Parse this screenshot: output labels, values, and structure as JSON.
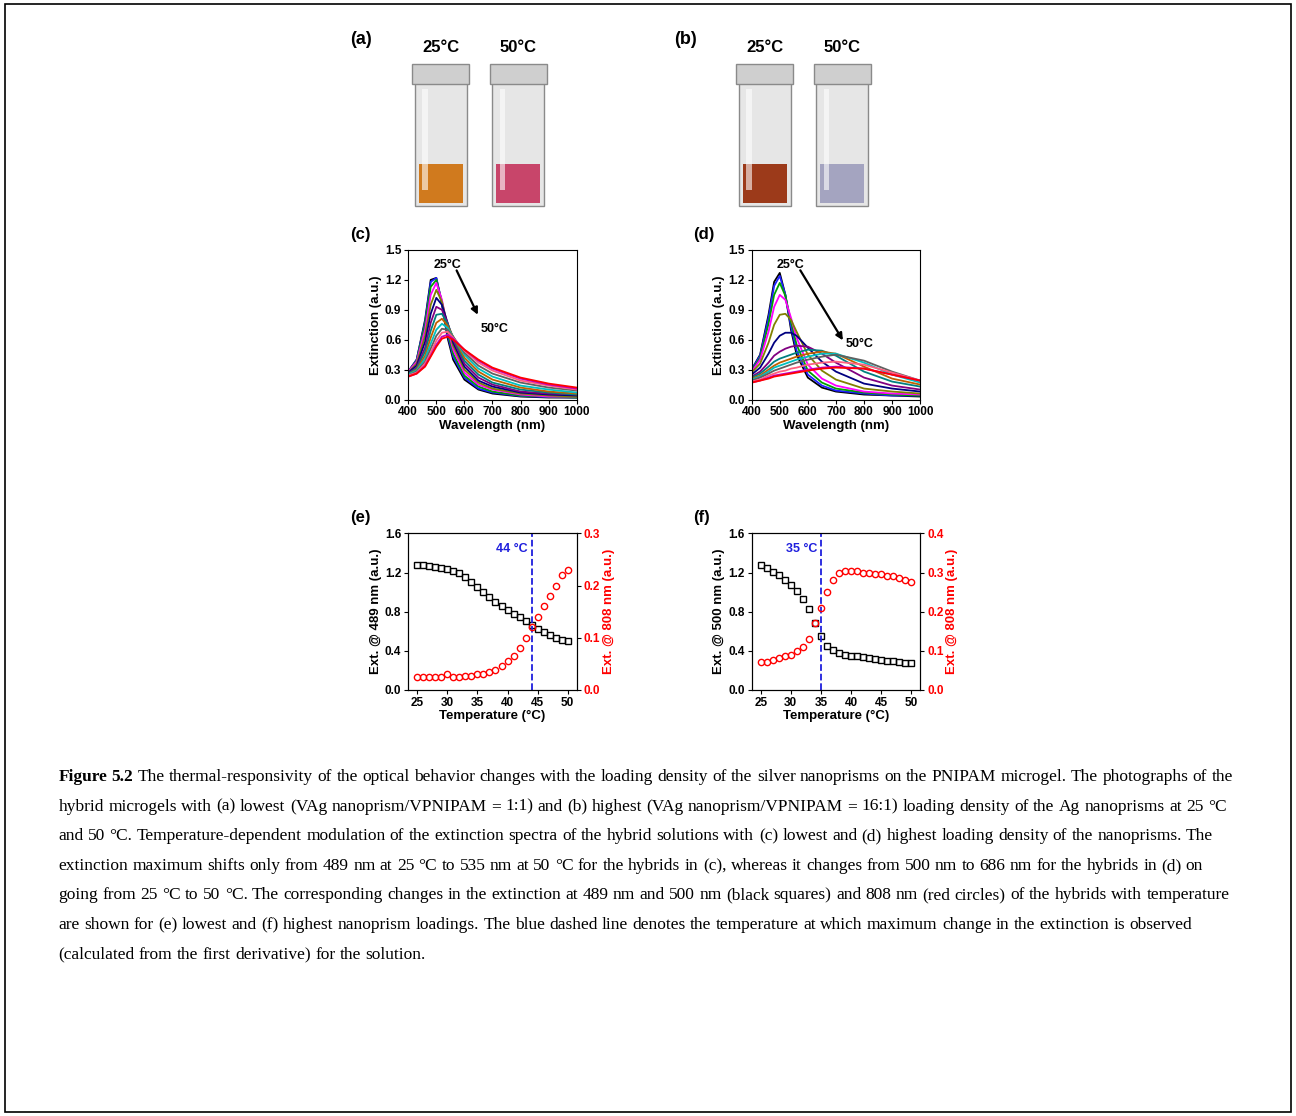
{
  "photos": [
    {
      "title": "(a)",
      "labels": [
        "25°C",
        "50°C"
      ],
      "colors": [
        "#d07a1e",
        "#c8456a"
      ]
    },
    {
      "title": "(b)",
      "labels": [
        "25°C",
        "50°C"
      ],
      "colors": [
        "#9c3a1a",
        "#a4a4c0"
      ]
    }
  ],
  "chart_data": [
    {
      "type": "line",
      "title": "(c)",
      "x_label": "Wavelength (nm)",
      "y_label": "Extinction (a.u.)",
      "xlim": [
        400,
        1000
      ],
      "xticks": [
        400,
        500,
        600,
        700,
        800,
        900,
        1000
      ],
      "ylim": [
        0.0,
        1.5
      ],
      "yticks": [
        0.0,
        0.3,
        0.6,
        0.9,
        1.2,
        1.5
      ],
      "annotations": [
        "25°C",
        "50°C"
      ],
      "x": [
        400,
        430,
        460,
        480,
        500,
        520,
        540,
        560,
        600,
        650,
        700,
        800,
        900,
        1000
      ],
      "series": [
        {
          "color": "#000000",
          "values": [
            0.28,
            0.4,
            0.8,
            1.2,
            1.22,
            0.95,
            0.62,
            0.4,
            0.2,
            0.1,
            0.06,
            0.03,
            0.02,
            0.02
          ]
        },
        {
          "color": "#1f1fff",
          "values": [
            0.28,
            0.4,
            0.78,
            1.18,
            1.22,
            0.97,
            0.65,
            0.43,
            0.22,
            0.11,
            0.07,
            0.035,
            0.025,
            0.02
          ]
        },
        {
          "color": "#00a000",
          "values": [
            0.28,
            0.39,
            0.75,
            1.13,
            1.2,
            0.98,
            0.68,
            0.46,
            0.24,
            0.13,
            0.08,
            0.04,
            0.03,
            0.02
          ]
        },
        {
          "color": "#ff00ff",
          "values": [
            0.28,
            0.38,
            0.7,
            1.05,
            1.17,
            1.0,
            0.72,
            0.5,
            0.27,
            0.15,
            0.1,
            0.05,
            0.03,
            0.03
          ]
        },
        {
          "color": "#808000",
          "values": [
            0.27,
            0.36,
            0.64,
            0.95,
            1.1,
            0.98,
            0.75,
            0.54,
            0.3,
            0.17,
            0.11,
            0.06,
            0.04,
            0.03
          ]
        },
        {
          "color": "#000080",
          "values": [
            0.27,
            0.34,
            0.58,
            0.86,
            1.02,
            0.95,
            0.77,
            0.57,
            0.33,
            0.19,
            0.13,
            0.07,
            0.05,
            0.04
          ]
        },
        {
          "color": "#800080",
          "values": [
            0.26,
            0.32,
            0.52,
            0.77,
            0.93,
            0.9,
            0.77,
            0.6,
            0.36,
            0.22,
            0.15,
            0.08,
            0.06,
            0.05
          ]
        },
        {
          "color": "#008080",
          "values": [
            0.26,
            0.31,
            0.48,
            0.69,
            0.85,
            0.86,
            0.76,
            0.62,
            0.39,
            0.25,
            0.17,
            0.1,
            0.07,
            0.05
          ]
        },
        {
          "color": "#c06000",
          "values": [
            0.25,
            0.3,
            0.44,
            0.62,
            0.77,
            0.81,
            0.74,
            0.63,
            0.42,
            0.28,
            0.2,
            0.12,
            0.08,
            0.06
          ]
        },
        {
          "color": "#00c0c0",
          "values": [
            0.25,
            0.29,
            0.41,
            0.56,
            0.7,
            0.76,
            0.72,
            0.63,
            0.45,
            0.31,
            0.23,
            0.14,
            0.1,
            0.07
          ]
        },
        {
          "color": "#606060",
          "values": [
            0.24,
            0.28,
            0.38,
            0.51,
            0.64,
            0.71,
            0.7,
            0.63,
            0.47,
            0.34,
            0.26,
            0.17,
            0.12,
            0.09
          ]
        },
        {
          "color": "#ff6080",
          "values": [
            0.24,
            0.27,
            0.36,
            0.47,
            0.59,
            0.67,
            0.68,
            0.62,
            0.49,
            0.37,
            0.29,
            0.19,
            0.14,
            0.1
          ]
        },
        {
          "color": "#c000c0",
          "values": [
            0.23,
            0.26,
            0.34,
            0.44,
            0.55,
            0.63,
            0.65,
            0.61,
            0.5,
            0.39,
            0.31,
            0.21,
            0.15,
            0.11
          ]
        },
        {
          "color": "#ff0000",
          "values": [
            0.23,
            0.26,
            0.33,
            0.43,
            0.53,
            0.61,
            0.63,
            0.6,
            0.5,
            0.4,
            0.32,
            0.22,
            0.16,
            0.12
          ]
        }
      ]
    },
    {
      "type": "line",
      "title": "(d)",
      "x_label": "Wavelength (nm)",
      "y_label": "Extinction (a.u.)",
      "xlim": [
        400,
        1000
      ],
      "xticks": [
        400,
        500,
        600,
        700,
        800,
        900,
        1000
      ],
      "ylim": [
        0.0,
        1.5
      ],
      "yticks": [
        0.0,
        0.3,
        0.6,
        0.9,
        1.2,
        1.5
      ],
      "annotations": [
        "25°C",
        "50°C"
      ],
      "x": [
        400,
        430,
        460,
        480,
        500,
        520,
        540,
        560,
        600,
        650,
        700,
        800,
        900,
        1000
      ],
      "series": [
        {
          "color": "#000000",
          "values": [
            0.3,
            0.45,
            0.85,
            1.18,
            1.27,
            1.05,
            0.7,
            0.45,
            0.22,
            0.12,
            0.08,
            0.05,
            0.04,
            0.03
          ]
        },
        {
          "color": "#1f1fff",
          "values": [
            0.3,
            0.44,
            0.82,
            1.14,
            1.24,
            1.05,
            0.73,
            0.49,
            0.25,
            0.14,
            0.09,
            0.06,
            0.04,
            0.04
          ]
        },
        {
          "color": "#00a000",
          "values": [
            0.29,
            0.42,
            0.76,
            1.05,
            1.17,
            1.04,
            0.78,
            0.55,
            0.29,
            0.17,
            0.11,
            0.07,
            0.05,
            0.04
          ]
        },
        {
          "color": "#ff00ff",
          "values": [
            0.28,
            0.4,
            0.68,
            0.93,
            1.05,
            1.0,
            0.82,
            0.62,
            0.35,
            0.21,
            0.14,
            0.08,
            0.06,
            0.05
          ]
        },
        {
          "color": "#808000",
          "values": [
            0.27,
            0.36,
            0.57,
            0.75,
            0.85,
            0.86,
            0.8,
            0.68,
            0.45,
            0.29,
            0.2,
            0.11,
            0.08,
            0.06
          ]
        },
        {
          "color": "#000080",
          "values": [
            0.25,
            0.32,
            0.46,
            0.57,
            0.64,
            0.67,
            0.67,
            0.64,
            0.52,
            0.38,
            0.28,
            0.16,
            0.11,
            0.08
          ]
        },
        {
          "color": "#800080",
          "values": [
            0.23,
            0.28,
            0.37,
            0.44,
            0.48,
            0.51,
            0.53,
            0.54,
            0.53,
            0.46,
            0.37,
            0.22,
            0.14,
            0.1
          ]
        },
        {
          "color": "#008080",
          "values": [
            0.22,
            0.26,
            0.33,
            0.38,
            0.41,
            0.43,
            0.45,
            0.47,
            0.5,
            0.49,
            0.44,
            0.28,
            0.18,
            0.13
          ]
        },
        {
          "color": "#c06000",
          "values": [
            0.21,
            0.24,
            0.3,
            0.34,
            0.37,
            0.39,
            0.41,
            0.43,
            0.46,
            0.48,
            0.46,
            0.33,
            0.21,
            0.15
          ]
        },
        {
          "color": "#00c0c0",
          "values": [
            0.2,
            0.23,
            0.28,
            0.32,
            0.34,
            0.36,
            0.38,
            0.4,
            0.43,
            0.46,
            0.46,
            0.37,
            0.25,
            0.17
          ]
        },
        {
          "color": "#606060",
          "values": [
            0.19,
            0.22,
            0.26,
            0.29,
            0.31,
            0.33,
            0.35,
            0.37,
            0.4,
            0.43,
            0.45,
            0.39,
            0.28,
            0.19
          ]
        },
        {
          "color": "#ff6080",
          "values": [
            0.18,
            0.2,
            0.24,
            0.26,
            0.28,
            0.29,
            0.31,
            0.32,
            0.35,
            0.37,
            0.38,
            0.35,
            0.27,
            0.19
          ]
        },
        {
          "color": "#c000c0",
          "values": [
            0.17,
            0.19,
            0.22,
            0.24,
            0.25,
            0.26,
            0.27,
            0.28,
            0.3,
            0.32,
            0.33,
            0.31,
            0.25,
            0.19
          ]
        },
        {
          "color": "#ff0000",
          "values": [
            0.17,
            0.19,
            0.21,
            0.23,
            0.24,
            0.25,
            0.26,
            0.27,
            0.29,
            0.31,
            0.32,
            0.31,
            0.25,
            0.19
          ]
        }
      ]
    },
    {
      "type": "scatter",
      "title": "(e)",
      "x_label": "Temperature (°C)",
      "y_label": "Ext. @ 489 nm (a.u.)",
      "y2_label": "Ext. @ 808 nm (a.u.)",
      "xlim": [
        23.5,
        51.5
      ],
      "xticks": [
        25,
        30,
        35,
        40,
        45,
        50
      ],
      "ylim": [
        0.0,
        1.6
      ],
      "yticks": [
        0.0,
        0.4,
        0.8,
        1.2,
        1.6
      ],
      "y2lim": [
        0.0,
        0.3
      ],
      "y2ticks": [
        0.0,
        0.1,
        0.2,
        0.3
      ],
      "annotations": [
        {
          "text": "44 °C",
          "x": 44
        }
      ],
      "x": [
        25,
        26,
        27,
        28,
        29,
        30,
        31,
        32,
        33,
        34,
        35,
        36,
        37,
        38,
        39,
        40,
        41,
        42,
        43,
        44,
        45,
        46,
        47,
        48,
        49,
        50
      ],
      "series": [
        {
          "color": "#000000",
          "marker": "square",
          "values": [
            1.28,
            1.28,
            1.27,
            1.26,
            1.25,
            1.24,
            1.22,
            1.19,
            1.15,
            1.1,
            1.05,
            1.0,
            0.95,
            0.9,
            0.86,
            0.82,
            0.78,
            0.74,
            0.7,
            0.66,
            0.62,
            0.59,
            0.56,
            0.53,
            0.51,
            0.5
          ]
        },
        {
          "color": "#ff0000",
          "marker": "circle",
          "axis": "y2",
          "values": [
            0.025,
            0.025,
            0.025,
            0.024,
            0.025,
            0.03,
            0.025,
            0.025,
            0.026,
            0.026,
            0.03,
            0.03,
            0.034,
            0.038,
            0.045,
            0.055,
            0.065,
            0.08,
            0.1,
            0.12,
            0.14,
            0.16,
            0.18,
            0.2,
            0.22,
            0.23
          ]
        }
      ]
    },
    {
      "type": "scatter",
      "title": "(f)",
      "x_label": "Temperature (°C)",
      "y_label": "Ext. @ 500 nm (a.u.)",
      "y2_label": "Ext. @ 808 nm (a.u.)",
      "xlim": [
        23.5,
        51.5
      ],
      "xticks": [
        25,
        30,
        35,
        40,
        45,
        50
      ],
      "ylim": [
        0.0,
        1.6
      ],
      "yticks": [
        0.0,
        0.4,
        0.8,
        1.2,
        1.6
      ],
      "y2lim": [
        0.0,
        0.4
      ],
      "y2ticks": [
        0.0,
        0.1,
        0.2,
        0.3,
        0.4
      ],
      "annotations": [
        {
          "text": "35 °C",
          "x": 35
        }
      ],
      "x": [
        25,
        26,
        27,
        28,
        29,
        30,
        31,
        32,
        33,
        34,
        35,
        36,
        37,
        38,
        39,
        40,
        41,
        42,
        43,
        44,
        45,
        46,
        47,
        48,
        49,
        50
      ],
      "series": [
        {
          "color": "#000000",
          "marker": "square",
          "values": [
            1.28,
            1.25,
            1.21,
            1.17,
            1.12,
            1.07,
            1.01,
            0.93,
            0.83,
            0.68,
            0.55,
            0.45,
            0.41,
            0.38,
            0.36,
            0.35,
            0.34,
            0.33,
            0.32,
            0.31,
            0.3,
            0.29,
            0.29,
            0.28,
            0.27,
            0.27
          ]
        },
        {
          "color": "#ff0000",
          "marker": "circle",
          "axis": "y2",
          "values": [
            0.07,
            0.072,
            0.075,
            0.08,
            0.085,
            0.09,
            0.1,
            0.11,
            0.13,
            0.17,
            0.21,
            0.25,
            0.28,
            0.3,
            0.305,
            0.305,
            0.305,
            0.3,
            0.3,
            0.295,
            0.295,
            0.29,
            0.29,
            0.285,
            0.28,
            0.275
          ]
        }
      ]
    }
  ],
  "caption": {
    "label": "Figure 5.2",
    "text": "The thermal-responsivity of the optical behavior changes with the loading density of the silver nanoprisms on the PNIPAM microgel. The photographs of the hybrid microgels with (a) lowest (VAg nanoprism/VPNIPAM = 1:1) and (b) highest (VAg nanoprism/VPNIPAM = 16:1) loading density of the Ag nanoprisms at 25 °C and 50 °C. Temperature-dependent modulation of the extinction spectra of the hybrid solutions with (c) lowest and (d) highest loading density of the nanoprisms. The extinction maximum shifts only from 489 nm at 25 °C to 535 nm at 50 °C for the hybrids in (c), whereas it changes from 500 nm to 686 nm for the hybrids in (d) on going from 25 °C to 50 °C. The corresponding changes in the extinction at 489 nm and 500 nm (black squares) and 808 nm (red circles) of the hybrids with temperature are shown for (e) lowest and (f) highest nanoprism loadings. The blue dashed line denotes the temperature at which maximum change in the extinction is observed (calculated from the first derivative) for the solution."
  }
}
